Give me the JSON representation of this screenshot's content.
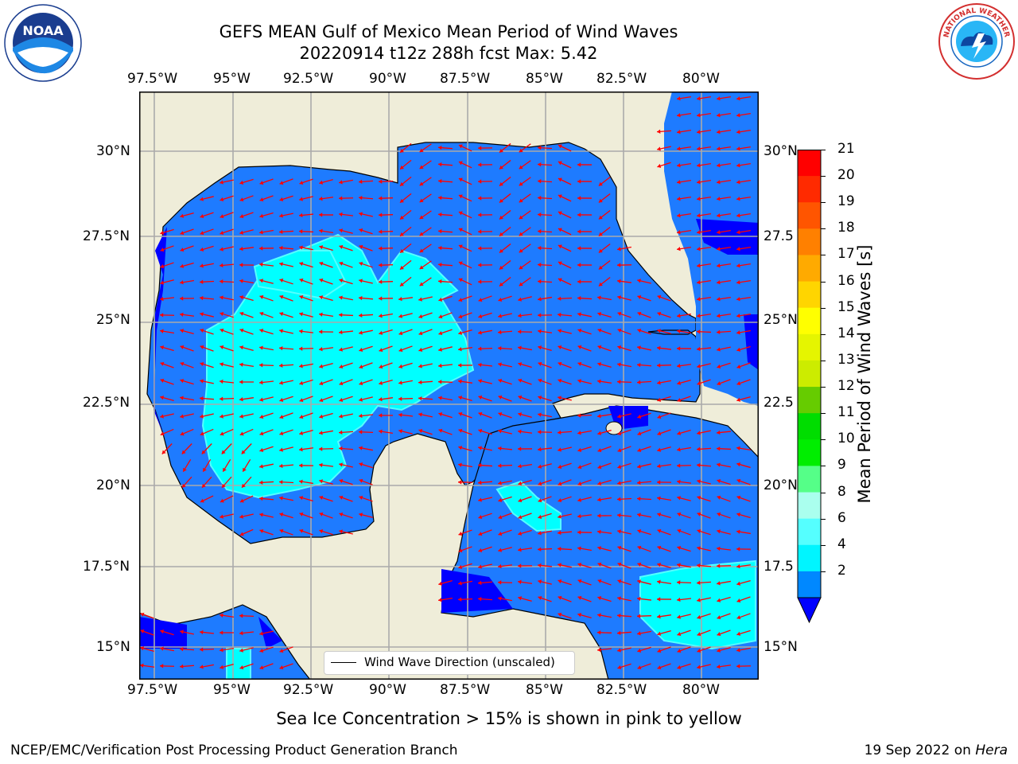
{
  "header": {
    "title_line1": "GEFS MEAN Gulf of Mexico Mean Period of Wind Waves",
    "title_line2": "20220914 t12z 288h fcst   Max: 5.42"
  },
  "logos": {
    "left": "NOAA",
    "right": "NATIONAL WEATHER SERVICE"
  },
  "axes": {
    "lon_labels": [
      "97.5°W",
      "95°W",
      "92.5°W",
      "90°W",
      "87.5°W",
      "85°W",
      "82.5°W",
      "80°W"
    ],
    "lat_labels": [
      "30°N",
      "27.5°N",
      "25°N",
      "22.5°N",
      "20°N",
      "17.5°N",
      "15°N"
    ],
    "right_lat_labels": [
      "30°N",
      "27.5",
      "25°N",
      "22.5",
      "20°N",
      "17.5",
      "15°N"
    ]
  },
  "legend": {
    "label": "Wind Wave Direction (unscaled)"
  },
  "colorbar": {
    "title": "Mean Period of Wind Waves [s]",
    "ticks": [
      "21",
      "20",
      "19",
      "18",
      "17",
      "16",
      "15",
      "14",
      "13",
      "12",
      "11",
      "10",
      "9",
      "8",
      "6",
      "4",
      "2"
    ],
    "colors": [
      "#ff0000",
      "#ff2a00",
      "#ff5500",
      "#ff8000",
      "#ffaa00",
      "#ffd500",
      "#ffff00",
      "#e5f500",
      "#ccec00",
      "#66cc00",
      "#00dd00",
      "#00ee00",
      "#55ff88",
      "#aaffee",
      "#55ffff",
      "#00f5ff",
      "#0088ff"
    ],
    "under_color": "#0000ff"
  },
  "map_colors": {
    "land": "#efedd9",
    "water_low": "#0000ff",
    "water_2_4": "#1e7bff",
    "water_4_6": "#00ffff",
    "arrow": "#ff0000",
    "grid": "#aaaaaa"
  },
  "footer": {
    "note": "Sea Ice Concentration > 15% is shown in pink to yellow",
    "left": "NCEP/EMC/Verification Post Processing Product Generation Branch",
    "right_prefix": "19 Sep 2022 on ",
    "right_host": "Hera"
  }
}
